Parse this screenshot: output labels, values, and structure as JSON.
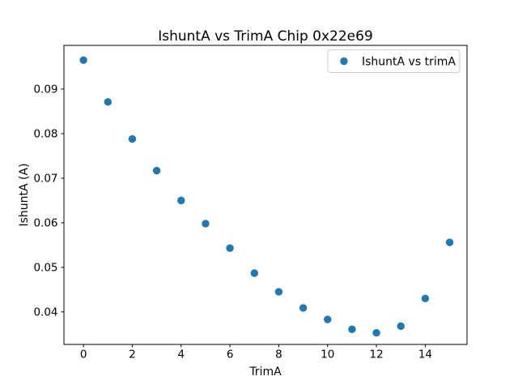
{
  "chart_data": {
    "type": "scatter",
    "title": "IshuntA vs TrimA Chip 0x22e69",
    "xlabel": "TrimA",
    "ylabel": "IshuntA (A)",
    "x": [
      0,
      1,
      2,
      3,
      4,
      5,
      6,
      7,
      8,
      9,
      10,
      11,
      12,
      13,
      14,
      15
    ],
    "series": [
      {
        "name": "IshuntA vs trimA",
        "values": [
          0.0965,
          0.0871,
          0.0788,
          0.0717,
          0.065,
          0.0598,
          0.0543,
          0.0487,
          0.0445,
          0.0409,
          0.0383,
          0.0361,
          0.0353,
          0.0368,
          0.043,
          0.0556
        ],
        "color": "#1f77b4"
      }
    ],
    "xlim": [
      -0.8,
      15.71
    ],
    "ylim": [
      0.0327,
      0.0998
    ],
    "x_tick_values": [
      0,
      2,
      4,
      6,
      8,
      10,
      12,
      14
    ],
    "x_tick_labels": [
      "0",
      "2",
      "4",
      "6",
      "8",
      "10",
      "12",
      "14"
    ],
    "y_tick_values": [
      0.04,
      0.05,
      0.06,
      0.07,
      0.08,
      0.09
    ],
    "y_tick_labels": [
      "0.04",
      "0.05",
      "0.06",
      "0.07",
      "0.08",
      "0.09"
    ],
    "grid": false,
    "legend": {
      "position": "upper right",
      "frame_color": "#cccccc",
      "label": "IshuntA vs trimA"
    },
    "background_color": "#ffffff",
    "spine_color": "#000000"
  }
}
